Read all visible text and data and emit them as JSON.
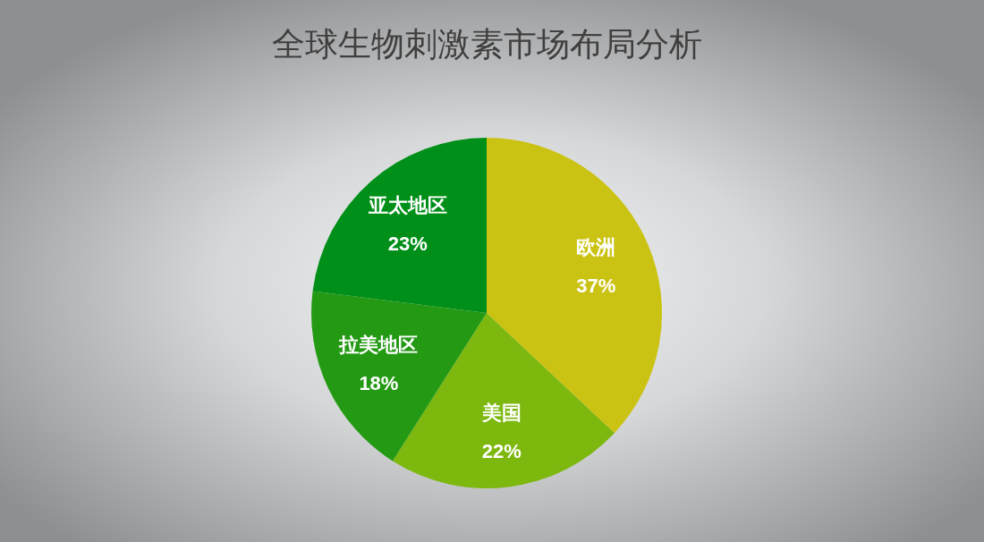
{
  "chart_data": {
    "type": "pie",
    "title": "全球生物刺激素市场布局分析",
    "categories": [
      "欧洲",
      "美国",
      "拉美地区",
      "亚太地区"
    ],
    "values": [
      37,
      22,
      18,
      23
    ],
    "value_labels": [
      "37%",
      "22%",
      "18%",
      "23%"
    ],
    "colors": [
      "#cbc313",
      "#7cb80e",
      "#249a14",
      "#008f18"
    ],
    "legend": false
  }
}
